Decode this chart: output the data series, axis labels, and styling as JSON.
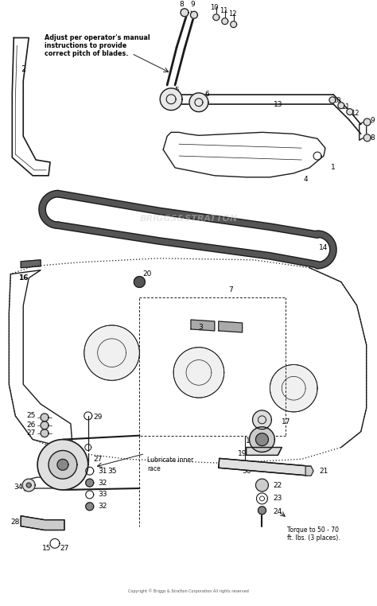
{
  "bg_color": "#ffffff",
  "line_color": "#1a1a1a",
  "text_color": "#000000",
  "annotation_text": "Adjust per operator's manual\ninstructions to provide\ncorrect pitch of blades.",
  "torque_text": "Torque to 50 - 70\nft. lbs. (3 places).",
  "lubricate_text": "Lubricate inner\nrace",
  "copyright_text": "Copyright © Briggs & Stratton Corporation All rights reserved",
  "watermark": "BRIGGS&STRATTON"
}
